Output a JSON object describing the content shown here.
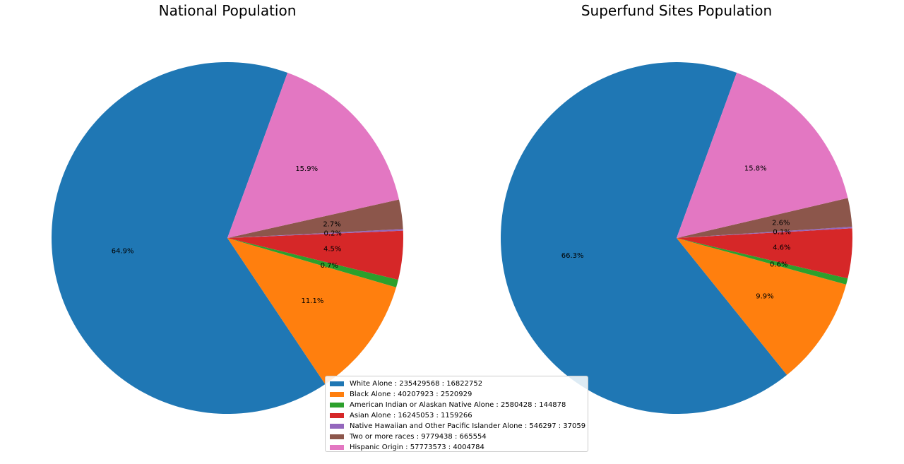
{
  "chart_data": [
    {
      "type": "pie",
      "title": "National Population",
      "labels": [
        "White Alone",
        "Black Alone",
        "American Indian or Alaskan Native Alone",
        "Asian Alone",
        "Native Hawaiian and Other Pacific Islander Alone",
        "Two or more races",
        "Hispanic Origin"
      ],
      "values": [
        235429568,
        40207923,
        2580428,
        16245053,
        546297,
        9779438,
        57773573
      ],
      "percent_labels": [
        "64.9%",
        "11.1%",
        "0.7%",
        "4.5%",
        "0.2%",
        "2.7%",
        "15.9%"
      ],
      "colors": [
        "#1f77b4",
        "#ff7f0e",
        "#2ca02c",
        "#d62728",
        "#9467bd",
        "#8c564b",
        "#e377c2"
      ],
      "start_angle_deg": 70,
      "direction": "counterclockwise"
    },
    {
      "type": "pie",
      "title": "Superfund Sites Population",
      "labels": [
        "White Alone",
        "Black Alone",
        "American Indian or Alaskan Native Alone",
        "Asian Alone",
        "Native Hawaiian and Other Pacific Islander Alone",
        "Two or more races",
        "Hispanic Origin"
      ],
      "values": [
        16822752,
        2520929,
        144878,
        1159266,
        37059,
        665554,
        4004784
      ],
      "percent_labels": [
        "66.3%",
        "9.9%",
        "0.6%",
        "4.6%",
        "0.1%",
        "2.6%",
        "15.8%"
      ],
      "colors": [
        "#1f77b4",
        "#ff7f0e",
        "#2ca02c",
        "#d62728",
        "#9467bd",
        "#8c564b",
        "#e377c2"
      ],
      "start_angle_deg": 70,
      "direction": "counterclockwise"
    }
  ],
  "legend": {
    "placement": "bottom-center",
    "items": [
      {
        "label": "White Alone : 235429568 : 16822752",
        "color": "#1f77b4"
      },
      {
        "label": "Black Alone : 40207923 : 2520929",
        "color": "#ff7f0e"
      },
      {
        "label": "American Indian or Alaskan Native Alone : 2580428 : 144878",
        "color": "#2ca02c"
      },
      {
        "label": "Asian Alone : 16245053 : 1159266",
        "color": "#d62728"
      },
      {
        "label": "Native Hawaiian and Other Pacific Islander Alone : 546297 : 37059",
        "color": "#9467bd"
      },
      {
        "label": "Two or more races : 9779438 : 665554",
        "color": "#8c564b"
      },
      {
        "label": "Hispanic Origin : 57773573 : 4004784",
        "color": "#e377c2"
      }
    ]
  }
}
